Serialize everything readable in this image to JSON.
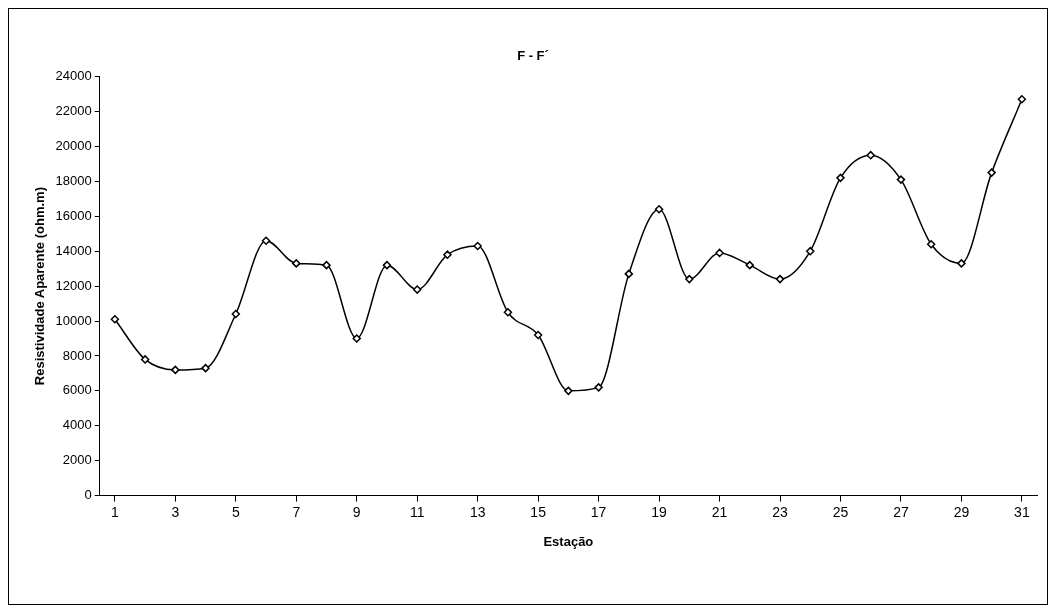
{
  "chart_data": {
    "type": "line",
    "title": "F - F´",
    "xlabel": "Estação",
    "ylabel": "Resistividade Aparente (ohm.m)",
    "x": [
      1,
      2,
      3,
      4,
      5,
      6,
      7,
      8,
      9,
      10,
      11,
      12,
      13,
      14,
      15,
      16,
      17,
      18,
      19,
      20,
      21,
      22,
      23,
      24,
      25,
      26,
      27,
      28,
      29,
      30,
      31
    ],
    "xlim": [
      0.5,
      31.5
    ],
    "xticks": [
      1,
      3,
      5,
      7,
      9,
      11,
      13,
      15,
      17,
      19,
      21,
      23,
      25,
      27,
      29,
      31
    ],
    "series": [
      {
        "color": "#000000",
        "values": [
          10100,
          7800,
          7200,
          7300,
          10400,
          14600,
          13300,
          13200,
          9000,
          13200,
          11800,
          13800,
          14300,
          10500,
          9200,
          6000,
          6200,
          12700,
          16400,
          12400,
          13900,
          13200,
          12400,
          14000,
          18200,
          19500,
          18100,
          14400,
          13300,
          18500,
          22700
        ]
      }
    ],
    "ylim": [
      0,
      24000
    ],
    "yticks": [
      0,
      2000,
      4000,
      6000,
      8000,
      10000,
      12000,
      14000,
      16000,
      18000,
      20000,
      22000,
      24000
    ],
    "grid": false,
    "legend": false,
    "marker": "diamond",
    "line_style": "solid"
  }
}
